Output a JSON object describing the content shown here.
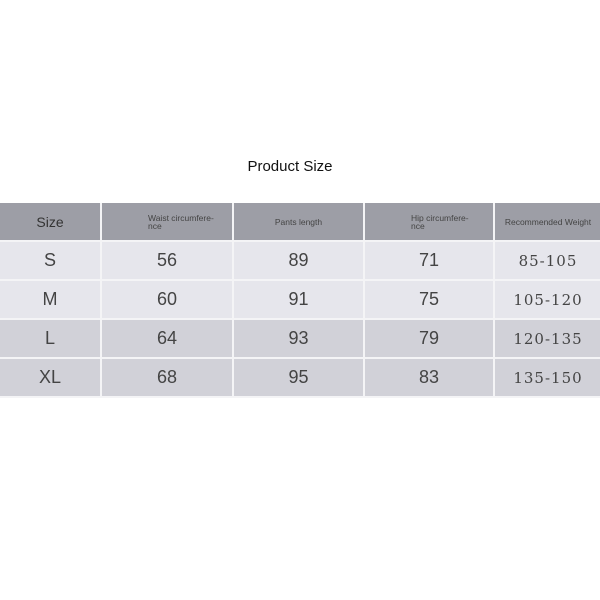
{
  "title": "Product Size",
  "headers": {
    "size": "Size",
    "waist_1": "Waist circumfere-",
    "waist_2": "nce",
    "length": "Pants length",
    "hip_1": "Hip circumfere-",
    "hip_2": "nce",
    "weight": "Recommended Weight"
  },
  "rows": [
    {
      "size": "S",
      "waist": "56",
      "length": "89",
      "hip": "71",
      "weight": "85-105"
    },
    {
      "size": "M",
      "waist": "60",
      "length": "91",
      "hip": "75",
      "weight": "105-120"
    },
    {
      "size": "L",
      "waist": "64",
      "length": "93",
      "hip": "79",
      "weight": "120-135"
    },
    {
      "size": "XL",
      "waist": "68",
      "length": "95",
      "hip": "83",
      "weight": "135-150"
    }
  ],
  "colors": {
    "header": "#9d9ea6",
    "row_light": "#e6e6ec",
    "row_dark": "#d1d1d8"
  }
}
